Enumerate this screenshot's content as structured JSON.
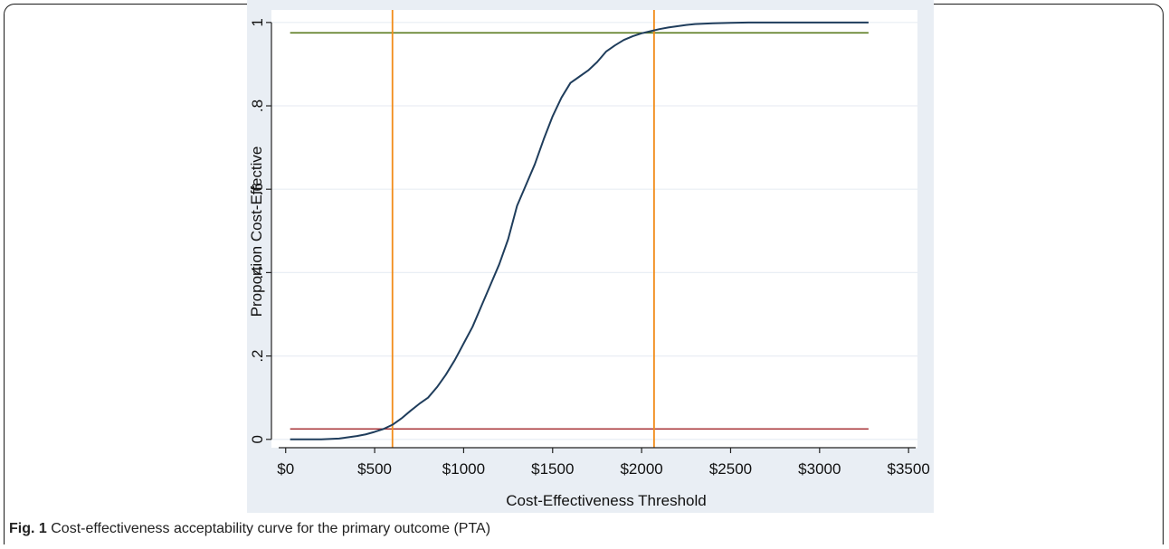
{
  "caption": {
    "label": "Fig. 1",
    "text": "Cost-effectiveness acceptability curve for the primary outcome (PTA)"
  },
  "colors": {
    "panel_background": "#e9eef4",
    "plot_background": "#ffffff",
    "curve": "#1f3d5c",
    "vertical_lines": "#f28c1a",
    "upper_line": "#5a7a1e",
    "lower_line": "#a8363a",
    "gridline": "#e9eef4"
  },
  "chart_data": {
    "type": "line",
    "title": "",
    "xlabel": "Cost-Effectiveness Threshold",
    "ylabel": "Proportion Cost-Effective",
    "xlim": [
      -80,
      3550
    ],
    "ylim": [
      -0.02,
      1.03
    ],
    "grid": true,
    "x_ticks": [
      0,
      500,
      1000,
      1500,
      2000,
      2500,
      3000,
      3500
    ],
    "x_tick_labels": [
      "$0",
      "$500",
      "$1000",
      "$1500",
      "$2000",
      "$2500",
      "$3000",
      "$3500"
    ],
    "y_ticks": [
      0,
      0.2,
      0.4,
      0.6,
      0.8,
      1
    ],
    "y_tick_labels": [
      "0",
      ".2",
      ".4",
      ".6",
      ".8",
      "1"
    ],
    "series": [
      {
        "x": [
          25,
          100,
          200,
          300,
          350,
          400,
          450,
          500,
          550,
          600,
          650,
          700,
          750,
          800,
          850,
          900,
          950,
          1000,
          1050,
          1100,
          1150,
          1200,
          1250,
          1300,
          1350,
          1400,
          1450,
          1500,
          1550,
          1600,
          1650,
          1700,
          1750,
          1800,
          1850,
          1900,
          1950,
          2000,
          2050,
          2100,
          2150,
          2200,
          2250,
          2300,
          2400,
          2500,
          2600,
          2800,
          3000,
          3275
        ],
        "y": [
          0,
          0,
          0,
          0.002,
          0.005,
          0.008,
          0.012,
          0.018,
          0.025,
          0.035,
          0.05,
          0.068,
          0.085,
          0.1,
          0.125,
          0.155,
          0.19,
          0.23,
          0.27,
          0.32,
          0.37,
          0.42,
          0.48,
          0.56,
          0.61,
          0.66,
          0.72,
          0.775,
          0.82,
          0.855,
          0.87,
          0.885,
          0.905,
          0.93,
          0.945,
          0.958,
          0.967,
          0.974,
          0.979,
          0.984,
          0.988,
          0.991,
          0.994,
          0.996,
          0.998,
          0.999,
          1,
          1,
          1,
          1
        ]
      }
    ],
    "reference_lines": {
      "horizontal": [
        0.975,
        0.025
      ],
      "vertical": [
        600,
        2070
      ],
      "horizontal_x_range": [
        25,
        3275
      ]
    }
  }
}
